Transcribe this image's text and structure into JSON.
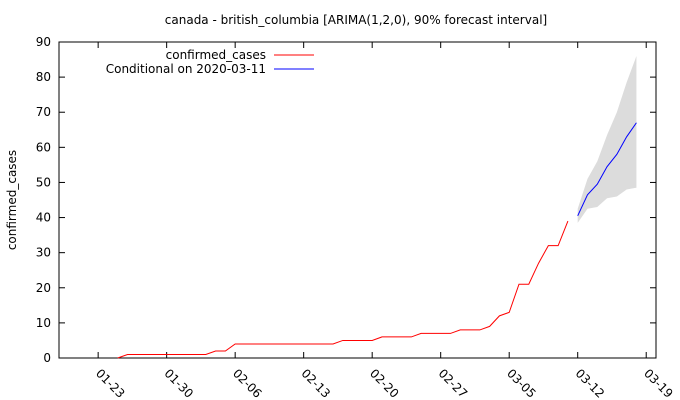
{
  "chart_data": {
    "type": "line",
    "title": "canada - british_columbia [ARIMA(1,2,0), 90% forecast interval]",
    "ylabel": "confirmed_cases",
    "xlabel": "",
    "ylim": [
      0,
      90
    ],
    "yticks": [
      0,
      10,
      20,
      30,
      40,
      50,
      60,
      70,
      80,
      90
    ],
    "xlim": [
      "2020-01-19",
      "2020-03-20"
    ],
    "xticks": [
      "01-23",
      "01-30",
      "02-06",
      "02-13",
      "02-20",
      "02-27",
      "03-05",
      "03-12",
      "03-19"
    ],
    "grid": false,
    "legend_position": "top-left",
    "series": [
      {
        "name": "confirmed_cases",
        "color": "#ff0000",
        "x": [
          "2020-01-25",
          "2020-01-26",
          "2020-01-27",
          "2020-01-28",
          "2020-01-29",
          "2020-01-30",
          "2020-01-31",
          "2020-02-01",
          "2020-02-02",
          "2020-02-03",
          "2020-02-04",
          "2020-02-05",
          "2020-02-06",
          "2020-02-07",
          "2020-02-08",
          "2020-02-09",
          "2020-02-10",
          "2020-02-11",
          "2020-02-12",
          "2020-02-13",
          "2020-02-14",
          "2020-02-15",
          "2020-02-16",
          "2020-02-17",
          "2020-02-18",
          "2020-02-19",
          "2020-02-20",
          "2020-02-21",
          "2020-02-22",
          "2020-02-23",
          "2020-02-24",
          "2020-02-25",
          "2020-02-26",
          "2020-02-27",
          "2020-02-28",
          "2020-02-29",
          "2020-03-01",
          "2020-03-02",
          "2020-03-03",
          "2020-03-04",
          "2020-03-05",
          "2020-03-06",
          "2020-03-07",
          "2020-03-08",
          "2020-03-09",
          "2020-03-10",
          "2020-03-11"
        ],
        "y": [
          0,
          1,
          1,
          1,
          1,
          1,
          1,
          1,
          1,
          1,
          2,
          2,
          4,
          4,
          4,
          4,
          4,
          4,
          4,
          4,
          4,
          4,
          4,
          5,
          5,
          5,
          5,
          6,
          6,
          6,
          6,
          7,
          7,
          7,
          7,
          8,
          8,
          8,
          9,
          12,
          13,
          21,
          21,
          27,
          32,
          32,
          39
        ]
      },
      {
        "name": "Conditional on 2020-03-11",
        "color": "#0000ff",
        "x": [
          "2020-03-12",
          "2020-03-13",
          "2020-03-14",
          "2020-03-15",
          "2020-03-16",
          "2020-03-17",
          "2020-03-18"
        ],
        "y": [
          40.5,
          46.5,
          49.5,
          54.5,
          58,
          63,
          67
        ]
      }
    ],
    "forecast_interval": {
      "color": "#dcdcdc",
      "x": [
        "2020-03-12",
        "2020-03-13",
        "2020-03-14",
        "2020-03-15",
        "2020-03-16",
        "2020-03-17",
        "2020-03-18"
      ],
      "lower": [
        38.5,
        42.5,
        43,
        45.5,
        46,
        48,
        48.5
      ],
      "upper": [
        42.5,
        51,
        56,
        63.5,
        70,
        78.5,
        86
      ]
    }
  }
}
